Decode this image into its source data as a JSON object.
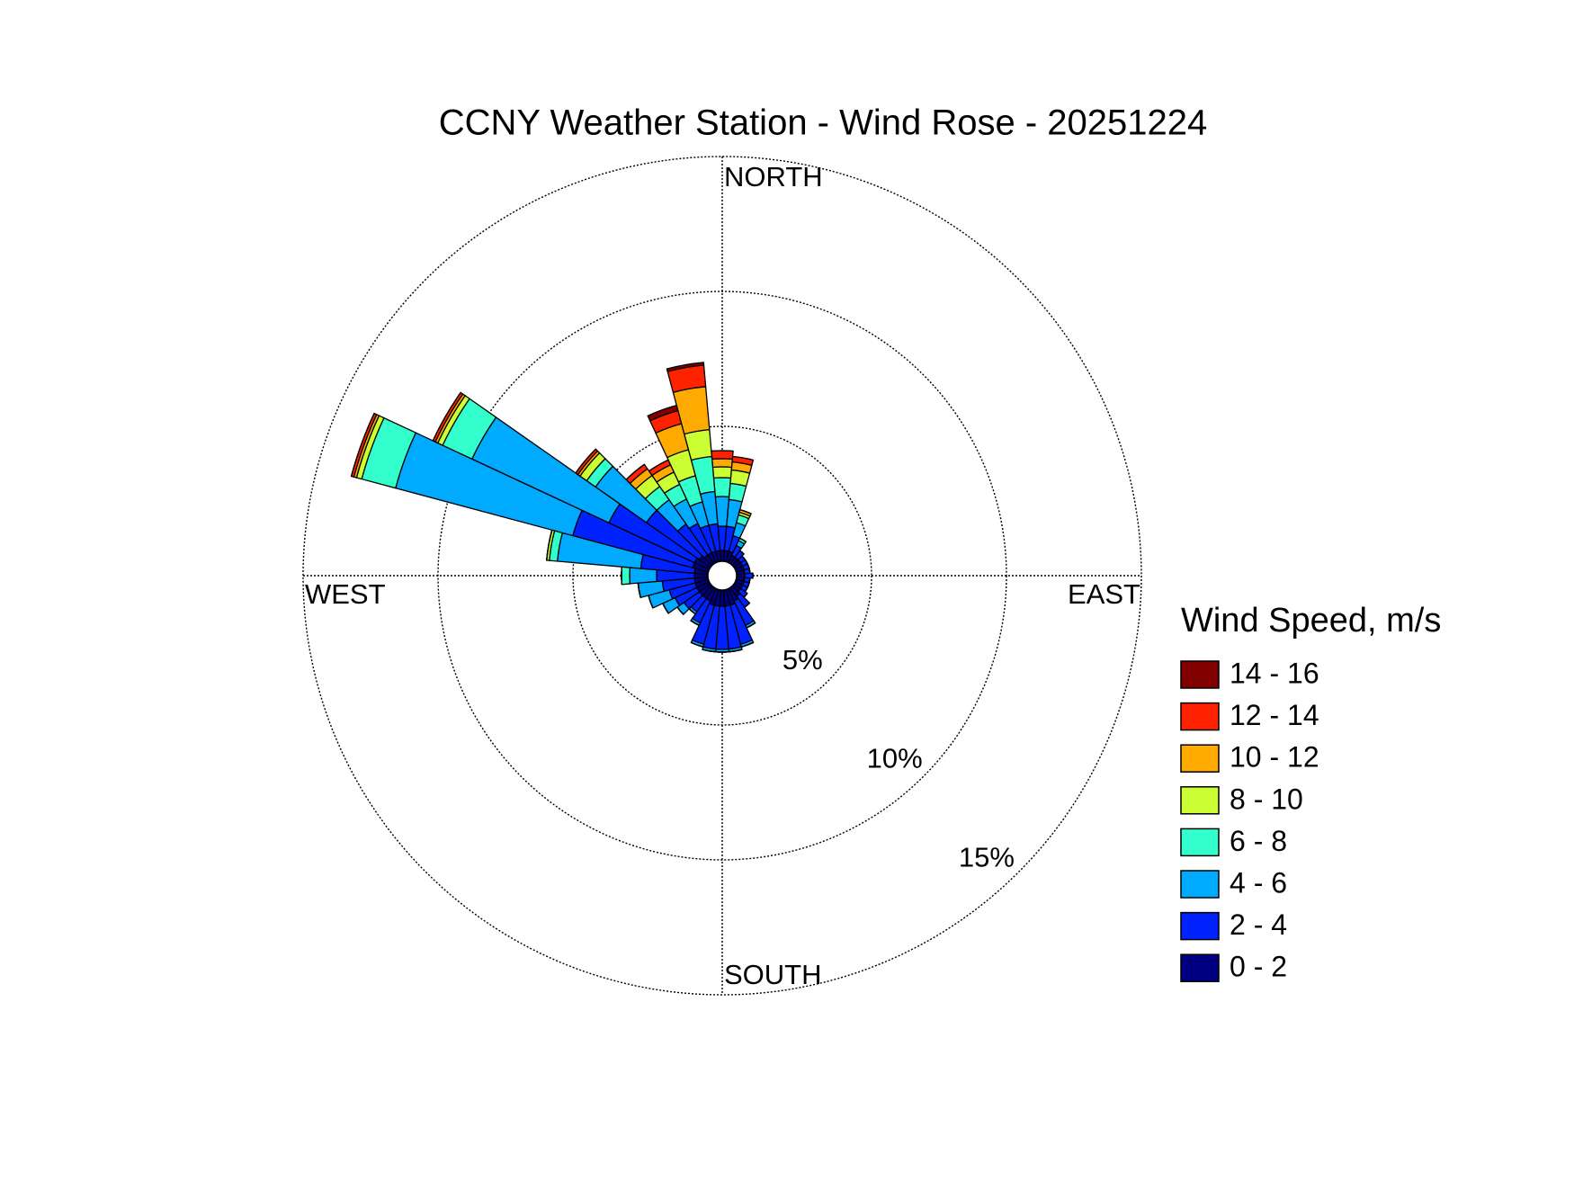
{
  "chart_data": {
    "type": "windrose",
    "title": "CCNY Weather Station - Wind Rose - 20251224",
    "direction_labels": [
      "NORTH",
      "EAST",
      "SOUTH",
      "WEST"
    ],
    "legend_title": "Wind Speed, m/s",
    "x": [
      0,
      10,
      20,
      30,
      40,
      50,
      60,
      70,
      80,
      90,
      100,
      110,
      120,
      130,
      140,
      150,
      160,
      170,
      180,
      190,
      200,
      210,
      220,
      230,
      240,
      250,
      260,
      270,
      280,
      290,
      300,
      310,
      320,
      330,
      340,
      350
    ],
    "rlim": [
      0,
      15
    ],
    "rticks": [
      {
        "value": 5,
        "label": "5%"
      },
      {
        "value": 10,
        "label": "10%"
      },
      {
        "value": 15,
        "label": "15%"
      }
    ],
    "series": [
      {
        "name": "0 - 2",
        "color": "#000080",
        "values": [
          0.4,
          0.4,
          0.4,
          0.3,
          0.3,
          0.3,
          0.3,
          0.3,
          0.3,
          0.3,
          0.3,
          0.3,
          0.3,
          0.3,
          0.4,
          0.5,
          0.6,
          0.6,
          0.6,
          0.6,
          0.6,
          0.5,
          0.5,
          0.5,
          0.5,
          0.5,
          0.5,
          0.5,
          0.5,
          0.6,
          0.6,
          0.5,
          0.4,
          0.4,
          0.4,
          0.4
        ]
      },
      {
        "name": "2 - 4",
        "color": "#0022ff",
        "values": [
          0.9,
          0.9,
          0.6,
          0.4,
          0.3,
          0.2,
          0.2,
          0.2,
          0.2,
          0.3,
          0.2,
          0.2,
          0.2,
          0.3,
          0.5,
          1.0,
          1.5,
          1.6,
          1.6,
          1.6,
          1.5,
          0.9,
          0.6,
          0.7,
          0.9,
          1.0,
          1.2,
          1.4,
          2.0,
          4.6,
          3.5,
          2.4,
          1.4,
          1.2,
          1.0,
          1.0
        ]
      },
      {
        "name": "4 - 6",
        "color": "#00aaff",
        "values": [
          1.1,
          1.0,
          0.5,
          0.2,
          0,
          0,
          0,
          0,
          0,
          0,
          0,
          0,
          0,
          0,
          0,
          0.1,
          0.1,
          0.1,
          0.1,
          0.1,
          0.1,
          0.1,
          0.1,
          0.3,
          0.5,
          0.8,
          0.9,
          1.0,
          3.1,
          6.8,
          5.6,
          2.3,
          1.1,
          1.0,
          0.9,
          1.2
        ]
      },
      {
        "name": "6 - 8",
        "color": "#33ffcc",
        "values": [
          0.7,
          0.6,
          0.3,
          0.1,
          0,
          0,
          0,
          0,
          0,
          0,
          0,
          0,
          0,
          0,
          0,
          0,
          0,
          0,
          0,
          0,
          0,
          0,
          0,
          0,
          0,
          0,
          0,
          0.3,
          0.3,
          1.3,
          1.2,
          0.4,
          0.6,
          0.6,
          1.0,
          1.3
        ]
      },
      {
        "name": "8 - 10",
        "color": "#ccff33",
        "values": [
          0.4,
          0.5,
          0.1,
          0,
          0,
          0,
          0,
          0,
          0,
          0,
          0,
          0,
          0,
          0,
          0,
          0,
          0,
          0,
          0,
          0,
          0,
          0,
          0,
          0,
          0,
          0,
          0,
          0,
          0.1,
          0.2,
          0.2,
          0.3,
          0.5,
          0.5,
          1.0,
          1.0
        ]
      },
      {
        "name": "10 - 12",
        "color": "#ffaa00",
        "values": [
          0.3,
          0.3,
          0.1,
          0,
          0,
          0,
          0,
          0,
          0,
          0,
          0,
          0,
          0,
          0,
          0,
          0,
          0,
          0,
          0,
          0,
          0,
          0,
          0,
          0,
          0,
          0,
          0,
          0,
          0,
          0.1,
          0.1,
          0.1,
          0.3,
          0.3,
          1.0,
          1.6
        ]
      },
      {
        "name": "12 - 14",
        "color": "#ff2200",
        "values": [
          0.3,
          0.2,
          0,
          0,
          0,
          0,
          0,
          0,
          0,
          0,
          0,
          0,
          0,
          0,
          0,
          0,
          0,
          0,
          0,
          0,
          0,
          0,
          0,
          0,
          0,
          0,
          0,
          0,
          0,
          0.1,
          0.1,
          0.1,
          0.2,
          0.2,
          0.5,
          0.8
        ]
      },
      {
        "name": "14 - 16",
        "color": "#800000",
        "values": [
          0,
          0,
          0,
          0,
          0,
          0,
          0,
          0,
          0,
          0,
          0,
          0,
          0,
          0,
          0,
          0,
          0,
          0,
          0,
          0,
          0,
          0,
          0,
          0,
          0,
          0,
          0,
          0,
          0,
          0,
          0,
          0,
          0,
          0,
          0.2,
          0.1
        ]
      }
    ]
  }
}
